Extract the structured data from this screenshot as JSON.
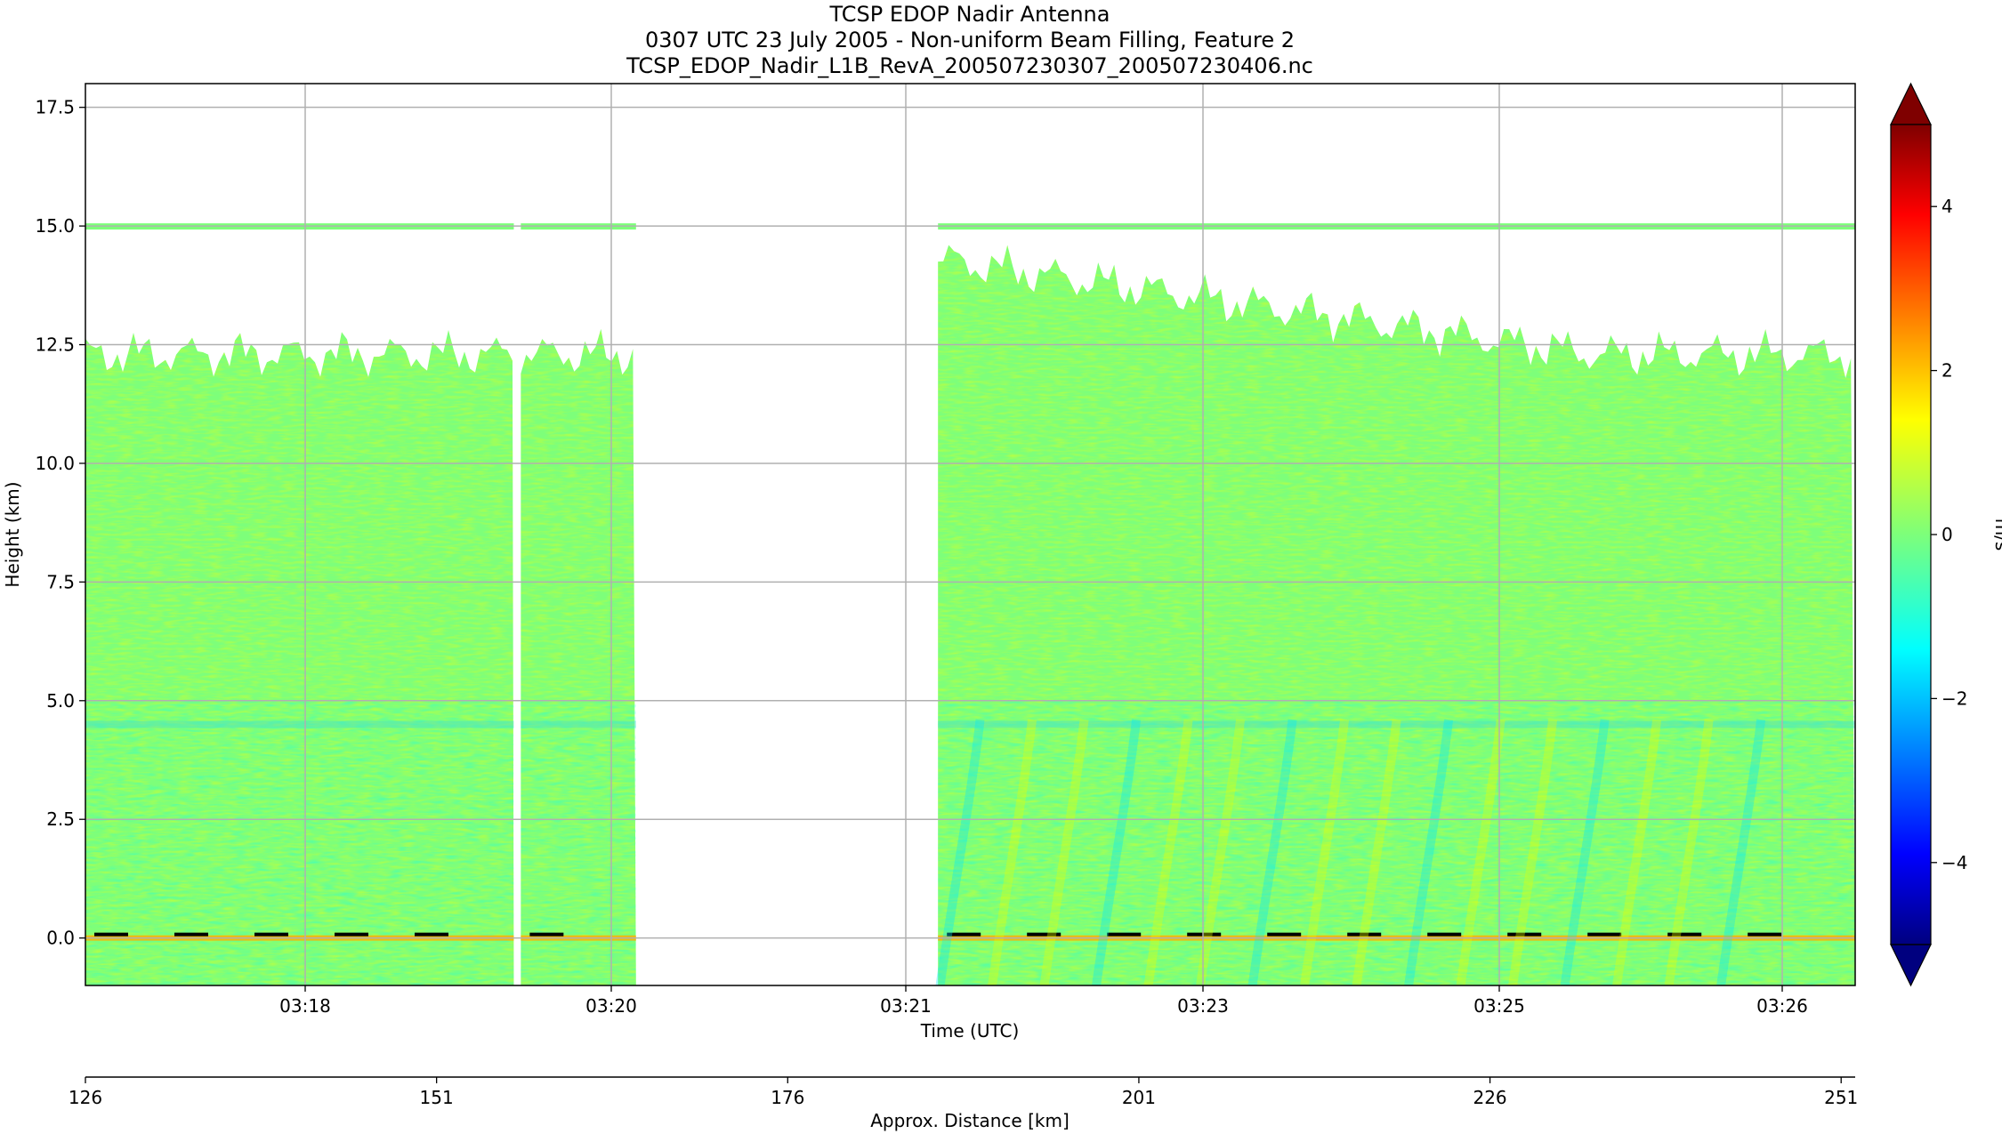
{
  "title_lines": [
    "TCSP EDOP Nadir Antenna",
    "0307 UTC 23 July 2005 - Non-uniform Beam Filling, Feature 2",
    "TCSP_EDOP_Nadir_L1B_RevA_200507230307_200507230406.nc"
  ],
  "chart_data": {
    "type": "heatmap",
    "colormap": "jet",
    "x": {
      "label": "Time (UTC)",
      "tick_labels": [
        "03:18",
        "03:20",
        "03:21",
        "03:23",
        "03:25",
        "03:26"
      ]
    },
    "x2": {
      "label": "Approx. Distance [km]",
      "range": [
        126,
        252
      ],
      "ticks": [
        126,
        151,
        176,
        201,
        226,
        251
      ]
    },
    "y": {
      "label": "Height (km)",
      "range": [
        -1.0,
        18.0
      ],
      "ticks": [
        0.0,
        2.5,
        5.0,
        7.5,
        10.0,
        12.5,
        15.0,
        17.5
      ],
      "tick_labels": [
        "0.0",
        "2.5",
        "5.0",
        "7.5",
        "10.0",
        "12.5",
        "15.0",
        "17.5"
      ]
    },
    "colorbar": {
      "label": "m/s",
      "range": [
        -5,
        5
      ],
      "ticks": [
        -4,
        -2,
        0,
        2,
        4
      ],
      "tick_labels": [
        "−4",
        "−2",
        "0",
        "2",
        "4"
      ],
      "extend": "both"
    },
    "grid": true,
    "data_segments_km": [
      [
        126,
        156.5
      ],
      [
        157,
        165.2
      ],
      [
        186.7,
        252
      ]
    ],
    "data_top_km": 15.0,
    "surface_height_km": 0.0,
    "melting_layer_km": 4.5,
    "value_note": "velocities mostly near 0 m/s; positive up to ~+3 near surface; negative to ~-2 in fall streaks"
  },
  "colors": {
    "background": "#ffffff",
    "grid": "#b0b0b0",
    "dominant_field": "#7dff7a"
  }
}
